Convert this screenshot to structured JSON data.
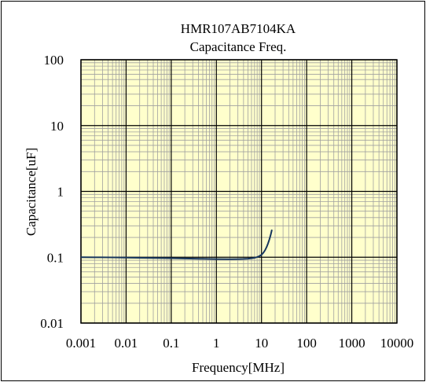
{
  "chart_data": {
    "type": "line",
    "title": "HMR107AB7104KA",
    "subtitle": "Capacitance Freq.",
    "xlabel": "Frequency[MHz]",
    "ylabel": "Capacitance[uF]",
    "x_scale": "log",
    "y_scale": "log",
    "xlim": [
      0.001,
      10000
    ],
    "ylim": [
      0.01,
      100
    ],
    "x_ticks": [
      "0.001",
      "0.01",
      "0.1",
      "1",
      "10",
      "100",
      "1000",
      "10000"
    ],
    "y_ticks": [
      "0.01",
      "0.1",
      "1",
      "10",
      "100"
    ],
    "grid": true,
    "legend": "none",
    "colors": {
      "plot_background": "#FFFFCC",
      "major_grid": "#000000",
      "minor_grid": "#A0A0A0",
      "series_line": "#17365D",
      "frame": "#000000"
    },
    "series": [
      {
        "x": [
          0.001,
          0.002,
          0.005,
          0.01,
          0.02,
          0.05,
          0.1,
          0.2,
          0.5,
          1,
          2,
          3,
          4,
          5,
          6,
          7,
          8,
          9,
          10,
          11,
          12,
          13,
          14,
          15,
          16,
          17
        ],
        "values": [
          0.1,
          0.0997,
          0.0992,
          0.0985,
          0.098,
          0.0972,
          0.0965,
          0.0955,
          0.0945,
          0.0938,
          0.0935,
          0.0937,
          0.0942,
          0.095,
          0.0962,
          0.098,
          0.1005,
          0.104,
          0.109,
          0.117,
          0.128,
          0.143,
          0.163,
          0.188,
          0.22,
          0.262
        ]
      }
    ]
  }
}
